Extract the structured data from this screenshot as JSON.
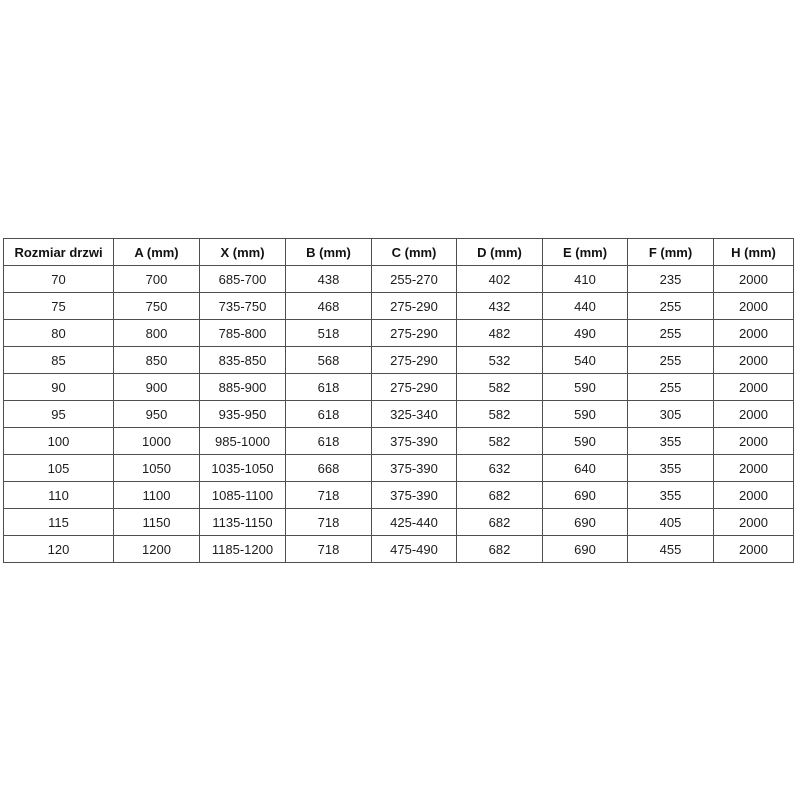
{
  "table": {
    "name": "door-dimensions-table",
    "headers": [
      "Rozmiar drzwi",
      "A (mm)",
      "X (mm)",
      "B (mm)",
      "C (mm)",
      "D (mm)",
      "E (mm)",
      "F (mm)",
      "H (mm)"
    ],
    "rows": [
      [
        "70",
        "700",
        "685-700",
        "438",
        "255-270",
        "402",
        "410",
        "235",
        "2000"
      ],
      [
        "75",
        "750",
        "735-750",
        "468",
        "275-290",
        "432",
        "440",
        "255",
        "2000"
      ],
      [
        "80",
        "800",
        "785-800",
        "518",
        "275-290",
        "482",
        "490",
        "255",
        "2000"
      ],
      [
        "85",
        "850",
        "835-850",
        "568",
        "275-290",
        "532",
        "540",
        "255",
        "2000"
      ],
      [
        "90",
        "900",
        "885-900",
        "618",
        "275-290",
        "582",
        "590",
        "255",
        "2000"
      ],
      [
        "95",
        "950",
        "935-950",
        "618",
        "325-340",
        "582",
        "590",
        "305",
        "2000"
      ],
      [
        "100",
        "1000",
        "985-1000",
        "618",
        "375-390",
        "582",
        "590",
        "355",
        "2000"
      ],
      [
        "105",
        "1050",
        "1035-1050",
        "668",
        "375-390",
        "632",
        "640",
        "355",
        "2000"
      ],
      [
        "110",
        "1100",
        "1085-1100",
        "718",
        "375-390",
        "682",
        "690",
        "355",
        "2000"
      ],
      [
        "115",
        "1150",
        "1135-1150",
        "718",
        "425-440",
        "682",
        "690",
        "405",
        "2000"
      ],
      [
        "120",
        "1200",
        "1185-1200",
        "718",
        "475-490",
        "682",
        "690",
        "455",
        "2000"
      ]
    ],
    "border_color": "#4f4f4f",
    "text_color": "#1c1c1c",
    "background_color": "#ffffff"
  },
  "chart_data": {
    "type": "table",
    "title": "",
    "columns": [
      "Rozmiar drzwi",
      "A (mm)",
      "X (mm)",
      "B (mm)",
      "C (mm)",
      "D (mm)",
      "E (mm)",
      "F (mm)",
      "H (mm)"
    ],
    "rows": [
      [
        "70",
        "700",
        "685-700",
        "438",
        "255-270",
        "402",
        "410",
        "235",
        "2000"
      ],
      [
        "75",
        "750",
        "735-750",
        "468",
        "275-290",
        "432",
        "440",
        "255",
        "2000"
      ],
      [
        "80",
        "800",
        "785-800",
        "518",
        "275-290",
        "482",
        "490",
        "255",
        "2000"
      ],
      [
        "85",
        "850",
        "835-850",
        "568",
        "275-290",
        "532",
        "540",
        "255",
        "2000"
      ],
      [
        "90",
        "900",
        "885-900",
        "618",
        "275-290",
        "582",
        "590",
        "255",
        "2000"
      ],
      [
        "95",
        "950",
        "935-950",
        "618",
        "325-340",
        "582",
        "590",
        "305",
        "2000"
      ],
      [
        "100",
        "1000",
        "985-1000",
        "618",
        "375-390",
        "582",
        "590",
        "355",
        "2000"
      ],
      [
        "105",
        "1050",
        "1035-1050",
        "668",
        "375-390",
        "632",
        "640",
        "355",
        "2000"
      ],
      [
        "110",
        "1100",
        "1085-1100",
        "718",
        "375-390",
        "682",
        "690",
        "355",
        "2000"
      ],
      [
        "115",
        "1150",
        "1135-1150",
        "718",
        "425-440",
        "682",
        "690",
        "405",
        "2000"
      ],
      [
        "120",
        "1200",
        "1185-1200",
        "718",
        "475-490",
        "682",
        "690",
        "455",
        "2000"
      ]
    ]
  }
}
